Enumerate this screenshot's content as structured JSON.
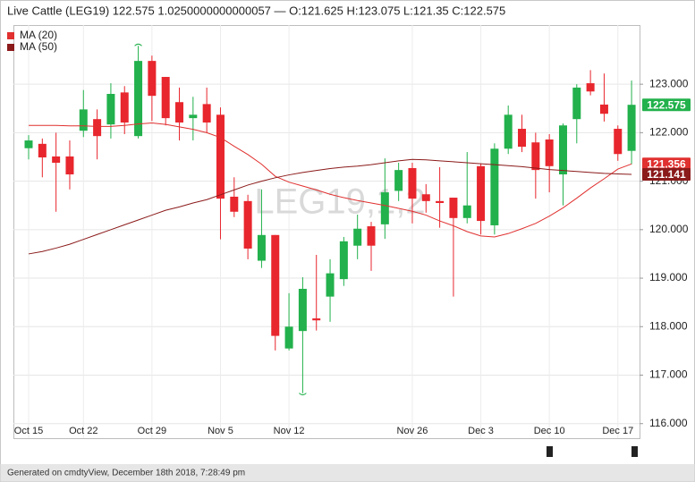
{
  "chart_data": {
    "type": "candlestick",
    "title": "Live Cattle (LEG19) 122.575 1.0250000000000057 — O:121.625 H:123.075 L:121.35 C:122.575",
    "watermark": "LEG19,1,2",
    "categories": [
      "Oct 15",
      null,
      null,
      null,
      "Oct 22",
      null,
      null,
      null,
      null,
      "Oct 29",
      null,
      null,
      null,
      null,
      "Nov 5",
      null,
      null,
      null,
      null,
      "Nov 12",
      null,
      null,
      null,
      null,
      null,
      null,
      null,
      null,
      "Nov 26",
      null,
      null,
      null,
      null,
      "Dec 3",
      null,
      null,
      null,
      null,
      "Dec 10",
      null,
      null,
      null,
      null,
      "Dec 17",
      null
    ],
    "open": [
      121.68,
      121.77,
      121.51,
      121.51,
      122.04,
      122.28,
      122.17,
      122.83,
      121.93,
      123.48,
      123.15,
      122.63,
      122.3,
      122.59,
      122.37,
      120.68,
      120.59,
      119.36,
      119.89,
      117.55,
      117.91,
      118.17,
      118.62,
      118.98,
      119.67,
      120.07,
      120.11,
      120.8,
      121.27,
      120.73,
      120.59,
      120.66,
      120.24,
      121.31,
      120.09,
      121.67,
      122.08,
      121.8,
      121.86,
      121.14,
      122.28,
      123.02,
      122.58,
      122.08,
      121.625
    ],
    "high": [
      121.95,
      121.88,
      122.0,
      121.84,
      122.88,
      122.48,
      123.02,
      122.96,
      123.79,
      123.59,
      123.15,
      122.93,
      122.74,
      122.93,
      122.52,
      121.08,
      120.72,
      120.83,
      119.89,
      118.69,
      119.02,
      119.48,
      119.39,
      119.85,
      120.31,
      120.16,
      121.47,
      121.38,
      121.38,
      120.94,
      121.29,
      120.66,
      121.6,
      121.36,
      121.78,
      122.56,
      122.37,
      122.0,
      121.97,
      122.19,
      123.0,
      123.29,
      123.22,
      122.15,
      123.075
    ],
    "low": [
      121.45,
      121.08,
      120.37,
      120.83,
      121.91,
      121.45,
      121.88,
      121.97,
      121.88,
      122.24,
      122.15,
      121.84,
      121.84,
      122.0,
      119.8,
      120.26,
      119.39,
      119.21,
      117.51,
      117.51,
      116.63,
      117.92,
      118.1,
      118.84,
      119.39,
      119.15,
      119.81,
      120.59,
      120.13,
      120.35,
      120.04,
      118.62,
      120.13,
      119.9,
      119.9,
      121.56,
      121.6,
      120.64,
      120.77,
      120.5,
      121.78,
      122.77,
      122.23,
      121.42,
      121.35
    ],
    "close": [
      121.84,
      121.49,
      121.38,
      121.14,
      122.48,
      121.93,
      122.8,
      122.21,
      123.48,
      122.76,
      122.3,
      122.21,
      122.37,
      122.21,
      120.64,
      120.37,
      119.61,
      119.89,
      117.81,
      118.0,
      118.78,
      118.13,
      119.1,
      119.76,
      120.02,
      119.67,
      120.77,
      121.23,
      120.64,
      120.59,
      120.55,
      120.24,
      120.5,
      120.18,
      121.67,
      122.37,
      121.71,
      121.23,
      121.31,
      122.15,
      122.93,
      122.85,
      122.39,
      121.56,
      122.575
    ],
    "up_color": "#22b14c",
    "down_color": "#e8262d",
    "series": [
      {
        "name": "MA (20)",
        "color": "#e0302f",
        "values": [
          122.15,
          122.15,
          122.15,
          122.14,
          122.14,
          122.13,
          122.13,
          122.15,
          122.18,
          122.2,
          122.17,
          122.12,
          122.07,
          122.0,
          121.9,
          121.72,
          121.55,
          121.35,
          121.1,
          120.98,
          120.9,
          120.82,
          120.73,
          120.66,
          120.6,
          120.55,
          120.5,
          120.44,
          120.38,
          120.3,
          120.18,
          120.08,
          119.96,
          119.87,
          119.85,
          119.92,
          120.02,
          120.13,
          120.28,
          120.45,
          120.65,
          120.86,
          121.05,
          121.25,
          121.356
        ]
      },
      {
        "name": "MA (50)",
        "color": "#8b1a1a",
        "values": [
          119.5,
          119.55,
          119.62,
          119.7,
          119.8,
          119.9,
          120.0,
          120.1,
          120.2,
          120.3,
          120.4,
          120.47,
          120.55,
          120.62,
          120.72,
          120.82,
          120.92,
          121.0,
          121.07,
          121.13,
          121.18,
          121.22,
          121.26,
          121.29,
          121.31,
          121.34,
          121.38,
          121.42,
          121.45,
          121.44,
          121.42,
          121.4,
          121.38,
          121.36,
          121.34,
          121.32,
          121.3,
          121.27,
          121.24,
          121.22,
          121.2,
          121.18,
          121.16,
          121.15,
          121.141
        ]
      }
    ],
    "price_tags": [
      {
        "value": 122.575,
        "label": "122.575",
        "color": "#22b14c"
      },
      {
        "value": 121.356,
        "label": "121.356",
        "color": "#e0302f"
      },
      {
        "value": 121.141,
        "label": "121.141",
        "color": "#8b1a1a"
      }
    ],
    "ylim": [
      115.7,
      124.22
    ],
    "yticks": [
      {
        "value": 116,
        "label": "116.000"
      },
      {
        "value": 117,
        "label": "117.000"
      },
      {
        "value": 118,
        "label": "118.000"
      },
      {
        "value": 119,
        "label": "119.000"
      },
      {
        "value": 120,
        "label": "120.000"
      },
      {
        "value": 121,
        "label": "121.000"
      },
      {
        "value": 122,
        "label": "122.000"
      },
      {
        "value": 123,
        "label": "123.000"
      }
    ],
    "grid": true,
    "legend": "top-left"
  },
  "footer": "Generated on cmdtyView, December 18th 2018, 7:28:49 pm"
}
